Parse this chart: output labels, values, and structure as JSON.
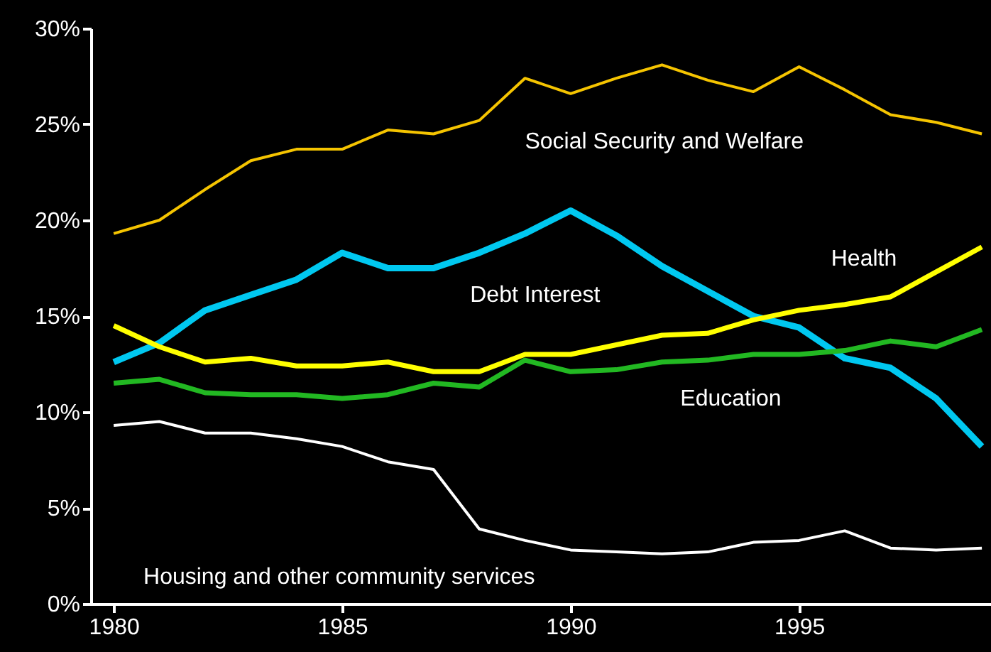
{
  "chart_data": {
    "type": "line",
    "x": [
      1980,
      1981,
      1982,
      1983,
      1984,
      1985,
      1986,
      1987,
      1988,
      1989,
      1990,
      1991,
      1992,
      1993,
      1994,
      1995,
      1996,
      1997,
      1998,
      1999
    ],
    "series": [
      {
        "name": "Social Security and Welfare",
        "color": "#f5c400",
        "values": [
          19.3,
          20.0,
          21.6,
          23.1,
          23.7,
          23.7,
          24.7,
          24.5,
          25.2,
          27.4,
          26.6,
          27.4,
          28.1,
          27.3,
          26.7,
          28.0,
          26.8,
          25.5,
          25.1,
          24.5
        ]
      },
      {
        "name": "Debt Interest",
        "color": "#00c8f0",
        "values": [
          12.6,
          13.6,
          15.3,
          16.1,
          16.9,
          18.3,
          17.5,
          17.5,
          18.3,
          19.3,
          20.5,
          19.2,
          17.6,
          16.3,
          15.0,
          14.4,
          12.8,
          12.3,
          10.7,
          8.2
        ]
      },
      {
        "name": "Health",
        "color": "#ffff00",
        "values": [
          14.5,
          13.4,
          12.6,
          12.8,
          12.4,
          12.4,
          12.6,
          12.1,
          12.1,
          13.0,
          13.0,
          13.5,
          14.0,
          14.1,
          14.8,
          15.3,
          15.6,
          16.0,
          17.3,
          18.6
        ]
      },
      {
        "name": "Education",
        "color": "#22b822",
        "values": [
          11.5,
          11.7,
          11.0,
          10.9,
          10.9,
          10.7,
          10.9,
          11.5,
          11.3,
          12.7,
          12.1,
          12.2,
          12.6,
          12.7,
          13.0,
          13.0,
          13.2,
          13.7,
          13.4,
          14.3
        ]
      },
      {
        "name": "Housing and other community services",
        "color": "#ffffff",
        "values": [
          9.3,
          9.5,
          8.9,
          8.9,
          8.6,
          8.2,
          7.4,
          7.0,
          3.9,
          3.3,
          2.8,
          2.7,
          2.6,
          2.7,
          3.2,
          3.3,
          3.8,
          2.9,
          2.8,
          2.9
        ]
      }
    ],
    "xlim": [
      1979.5,
      1999.2
    ],
    "xticks": [
      1980,
      1985,
      1990,
      1995
    ],
    "ylim": [
      0,
      30
    ],
    "yticks": [
      {
        "value": 0,
        "label": "0%"
      },
      {
        "value": 5,
        "label": "5%"
      },
      {
        "value": 10,
        "label": "10%"
      },
      {
        "value": 15,
        "label": "15%"
      },
      {
        "value": 20,
        "label": "20%"
      },
      {
        "value": 25,
        "label": "25%"
      },
      {
        "value": 30,
        "label": "30%"
      }
    ],
    "grid": false,
    "line_style": "solid",
    "marker": "none"
  }
}
